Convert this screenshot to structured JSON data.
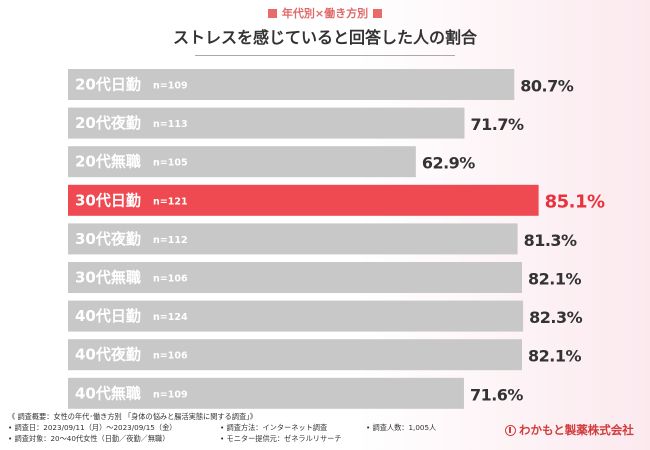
{
  "header": {
    "subtitle": "年代別×働き方別",
    "title": "ストレスを感じていると回答した人の割合"
  },
  "chart_data": {
    "type": "bar",
    "orientation": "horizontal",
    "title": "ストレスを感じていると回答した人の割合",
    "categories": [
      "20代日勤",
      "20代夜勤",
      "20代無職",
      "30代日勤",
      "30代夜勤",
      "30代無職",
      "40代日勤",
      "40代夜勤",
      "40代無職"
    ],
    "n_labels": [
      "n=109",
      "n=113",
      "n=105",
      "n=121",
      "n=112",
      "n=106",
      "n=124",
      "n=106",
      "n=109"
    ],
    "values": [
      80.7,
      71.7,
      62.9,
      85.1,
      81.3,
      82.1,
      82.3,
      82.1,
      71.6
    ],
    "value_labels": [
      "80.7%",
      "71.7%",
      "62.9%",
      "85.1%",
      "81.3%",
      "82.1%",
      "82.3%",
      "82.1%",
      "71.6%"
    ],
    "highlight_index": 3,
    "xlim": [
      0,
      100
    ],
    "colors": {
      "bar": "#c8c8c8",
      "highlight": "#ef4a51",
      "label_text": "#ffffff",
      "value_text": "#333333",
      "highlight_value_text": "#e8323c"
    }
  },
  "footer": {
    "survey_outline": "《 調査概要：女性の年代･働き方別 「身体の悩みと腸活実態に関する調査」》",
    "survey_date": "• 調査日：2023/09/11（月）～2023/09/15（金）",
    "survey_method": "• 調査方法：インターネット調査",
    "survey_count": "• 調査人数：1,005人",
    "survey_target": "• 調査対象：20～40代女性（日勤／夜勤／無職）",
    "monitor_provider": "• モニター提供元：ゼネラルリサーチ"
  },
  "logo": {
    "text": "わかもと製薬株式会社",
    "icon": "wakamoto-logo-icon"
  }
}
